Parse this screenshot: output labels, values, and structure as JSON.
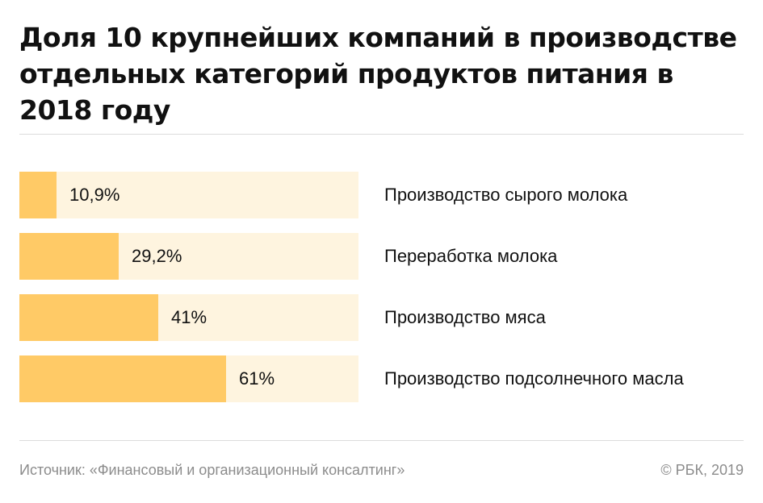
{
  "chart_data": {
    "type": "bar",
    "orientation": "horizontal",
    "title": "Доля 10 крупнейших компаний в производстве отдельных категорий продуктов питания в 2018 году",
    "categories": [
      "Производство сырого молока",
      "Переработка молока",
      "Производство мяса",
      "Производство подсолнечного масла"
    ],
    "values": [
      10.9,
      29.2,
      41,
      61
    ],
    "value_labels": [
      "10,9%",
      "29,2%",
      "41%",
      "61%"
    ],
    "xlim": [
      0,
      100
    ],
    "grid": false,
    "legend": "none",
    "colors": {
      "fill": "#ffca66",
      "track": "#fef4df"
    }
  },
  "footer": {
    "source": "Источник: «Финансовый и организационный консалтинг»",
    "copyright": "© РБК, 2019"
  }
}
